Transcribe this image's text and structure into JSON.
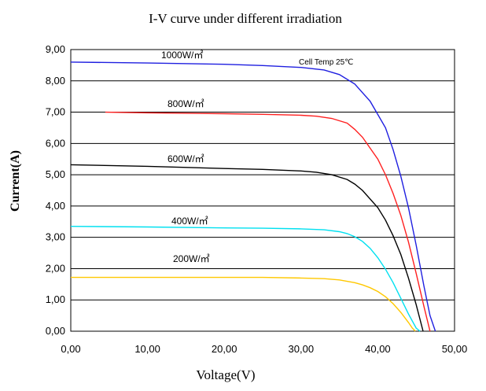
{
  "chart_data": {
    "type": "line",
    "title": "I-V curve under different irradiation",
    "xlabel": "Voltage(V)",
    "ylabel": "Current(A)",
    "xlim": [
      0,
      50
    ],
    "ylim": [
      0,
      9
    ],
    "x_ticks": [
      0,
      10,
      20,
      30,
      40,
      50
    ],
    "y_ticks": [
      0,
      1,
      2,
      3,
      4,
      5,
      6,
      7,
      8,
      9
    ],
    "x_tick_labels": [
      "0,00",
      "10,00",
      "20,00",
      "30,00",
      "40,00",
      "50,00"
    ],
    "y_tick_labels": [
      "0,00",
      "1,00",
      "2,00",
      "3,00",
      "4,00",
      "5,00",
      "6,00",
      "7,00",
      "8,00",
      "9,00"
    ],
    "grid": "horizontal",
    "annotation": "Cell Temp 25℃",
    "series": [
      {
        "name": "1000W/㎡",
        "color": "#1f1fe0",
        "x": [
          0,
          10,
          20,
          25,
          30,
          33,
          35,
          37,
          39,
          41,
          42,
          43,
          44,
          45,
          46,
          46.8,
          47.5
        ],
        "y": [
          8.6,
          8.57,
          8.53,
          8.49,
          8.43,
          8.35,
          8.2,
          7.9,
          7.35,
          6.5,
          5.8,
          4.95,
          3.95,
          2.75,
          1.45,
          0.5,
          0
        ]
      },
      {
        "name": "800W/㎡",
        "color": "#ff2020",
        "x": [
          4.5,
          10,
          20,
          25,
          30,
          32,
          34,
          36,
          37,
          38,
          40,
          41,
          42,
          43,
          44,
          45,
          46,
          46.8
        ],
        "y": [
          7.0,
          6.98,
          6.95,
          6.93,
          6.9,
          6.87,
          6.8,
          6.65,
          6.45,
          6.2,
          5.5,
          5.0,
          4.4,
          3.7,
          2.85,
          1.85,
          0.8,
          0
        ]
      },
      {
        "name": "600W/㎡",
        "color": "#000000",
        "x": [
          0,
          10,
          20,
          25,
          30,
          32,
          34,
          36,
          37,
          38,
          40,
          41,
          42,
          43,
          44,
          45,
          45.9
        ],
        "y": [
          5.32,
          5.27,
          5.2,
          5.17,
          5.12,
          5.08,
          5.0,
          4.85,
          4.7,
          4.5,
          3.95,
          3.55,
          3.05,
          2.45,
          1.7,
          0.85,
          0
        ]
      },
      {
        "name": "400W/㎡",
        "color": "#00e0f0",
        "x": [
          0,
          10,
          20,
          25,
          30,
          33,
          35,
          36,
          37,
          38,
          39,
          40,
          41,
          42,
          43,
          44,
          45,
          45.5
        ],
        "y": [
          3.35,
          3.33,
          3.3,
          3.29,
          3.27,
          3.24,
          3.18,
          3.12,
          3.02,
          2.87,
          2.65,
          2.35,
          1.98,
          1.55,
          1.05,
          0.55,
          0.1,
          0
        ]
      },
      {
        "name": "200W/㎡",
        "color": "#ffc800",
        "x": [
          0,
          10,
          20,
          25,
          30,
          33,
          35,
          37,
          38,
          39,
          40,
          41,
          42,
          43,
          44,
          44.5,
          44.9
        ],
        "y": [
          1.72,
          1.72,
          1.72,
          1.72,
          1.7,
          1.68,
          1.64,
          1.55,
          1.48,
          1.39,
          1.27,
          1.1,
          0.88,
          0.6,
          0.28,
          0.1,
          0
        ]
      }
    ]
  }
}
